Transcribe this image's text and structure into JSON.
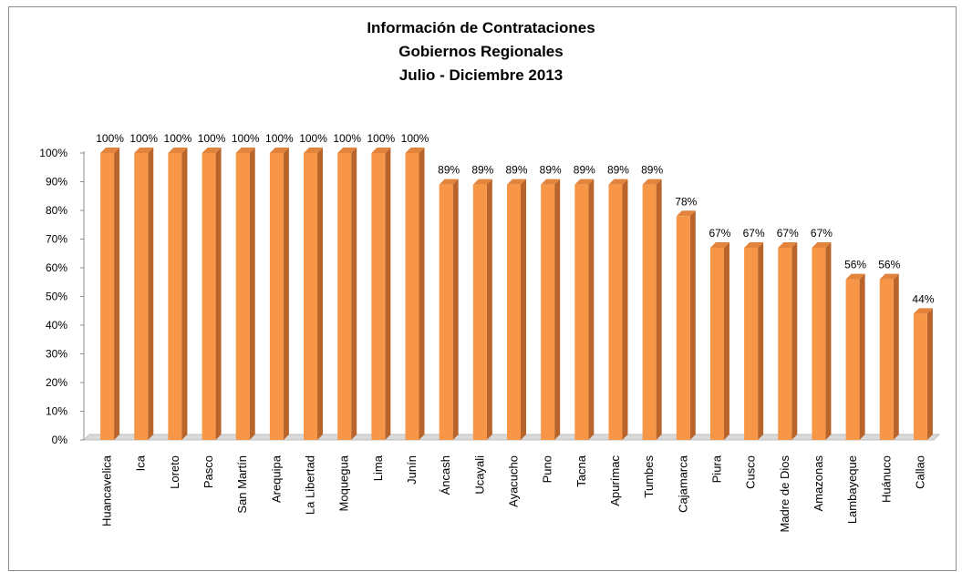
{
  "chart_data": {
    "type": "bar",
    "title": "Información de Contrataciones",
    "subtitle": "Gobiernos Regionales",
    "subtitle2": "Julio - Diciembre 2013",
    "xlabel": "",
    "ylabel": "",
    "ylim": [
      0,
      100
    ],
    "y_ticks": [
      "0%",
      "10%",
      "20%",
      "30%",
      "40%",
      "50%",
      "60%",
      "70%",
      "80%",
      "90%",
      "100%"
    ],
    "categories": [
      "Huancavelica",
      "Ica",
      "Loreto",
      "Pasco",
      "San Martín",
      "Arequipa",
      "La Libertad",
      "Moquegua",
      "Lima",
      "Junín",
      "Áncash",
      "Ucayali",
      "Ayacucho",
      "Puno",
      "Tacna",
      "Apurímac",
      "Tumbes",
      "Cajamarca",
      "Piura",
      "Cusco",
      "Madre de Dios",
      "Amazonas",
      "Lambayeque",
      "Huánuco",
      "Callao"
    ],
    "values": [
      100,
      100,
      100,
      100,
      100,
      100,
      100,
      100,
      100,
      100,
      89,
      89,
      89,
      89,
      89,
      89,
      89,
      78,
      67,
      67,
      67,
      67,
      56,
      56,
      44
    ],
    "data_labels": [
      "100%",
      "100%",
      "100%",
      "100%",
      "100%",
      "100%",
      "100%",
      "100%",
      "100%",
      "100%",
      "89%",
      "89%",
      "89%",
      "89%",
      "89%",
      "89%",
      "89%",
      "78%",
      "67%",
      "67%",
      "67%",
      "67%",
      "56%",
      "56%",
      "44%"
    ],
    "grid": false,
    "legend": "none",
    "colors": {
      "bar_front": "#f79646",
      "bar_side": "#b8642a",
      "bar_top": "#e2843c",
      "floor": "#d9d9d9",
      "axis": "#8c8c8c"
    }
  }
}
